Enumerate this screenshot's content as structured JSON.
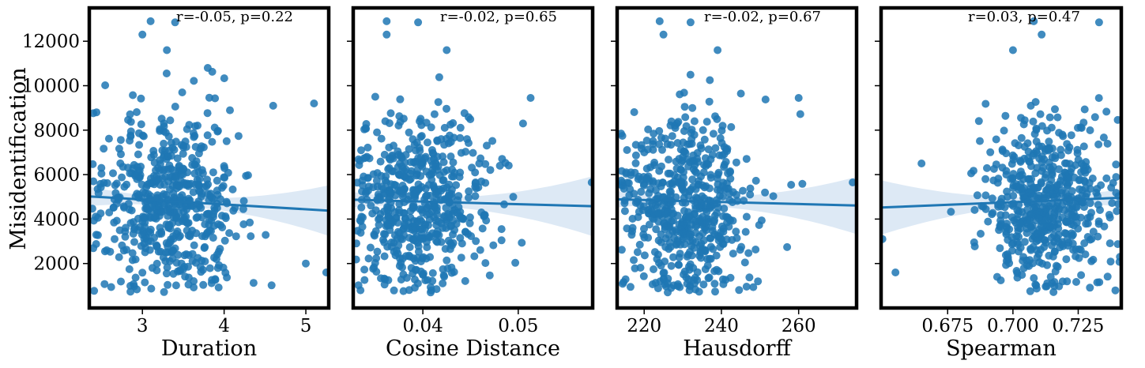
{
  "figure": {
    "ylabel": "Misidentification",
    "point_color": "#1f77b4",
    "band_color": "#c6dbef",
    "frame_color": "#000000"
  },
  "chart_data": [
    {
      "type": "scatter",
      "xlabel": "Duration",
      "ylabel": "Misidentification",
      "annotation": "r=-0.05, p=0.22",
      "xlim": [
        2.35,
        5.28
      ],
      "ylim": [
        0,
        13500
      ],
      "xticks": [
        3,
        4,
        5
      ],
      "xtick_labels": [
        "3",
        "4",
        "5"
      ],
      "yticks": [
        2000,
        4000,
        6000,
        8000,
        10000,
        12000
      ],
      "ytick_labels": [
        "2000",
        "4000",
        "6000",
        "8000",
        "10000",
        "12000"
      ],
      "x_center": 3.35,
      "x_spread": 0.42,
      "x_min": 2.38,
      "x_max": 5.26,
      "regression": {
        "x": [
          2.35,
          5.28
        ],
        "y": [
          5020,
          4380
        ]
      },
      "outliers": [
        [
          3.1,
          12900
        ],
        [
          3.0,
          12300
        ],
        [
          3.4,
          12850
        ],
        [
          3.3,
          11600
        ],
        [
          3.8,
          10800
        ],
        [
          4.6,
          9100
        ],
        [
          5.1,
          9200
        ],
        [
          5.25,
          1600
        ],
        [
          2.4,
          5700
        ],
        [
          5.0,
          2000
        ]
      ]
    },
    {
      "type": "scatter",
      "xlabel": "Cosine Distance",
      "annotation": "r=-0.02, p=0.65",
      "xlim": [
        0.0327,
        0.0578
      ],
      "ylim": [
        0,
        13500
      ],
      "xticks": [
        0.04,
        0.05
      ],
      "xtick_labels": [
        "0.04",
        "0.05"
      ],
      "yticks": [
        2000,
        4000,
        6000,
        8000,
        10000,
        12000
      ],
      "ytick_labels": [
        "",
        "",
        "",
        "",
        "",
        ""
      ],
      "x_center": 0.0395,
      "x_spread": 0.0037,
      "x_min": 0.033,
      "x_max": 0.0575,
      "regression": {
        "x": [
          0.0327,
          0.0578
        ],
        "y": [
          4870,
          4580
        ]
      },
      "outliers": [
        [
          0.0362,
          12900
        ],
        [
          0.0362,
          12300
        ],
        [
          0.0395,
          12850
        ],
        [
          0.0425,
          11600
        ],
        [
          0.0513,
          9450
        ],
        [
          0.0577,
          5650
        ],
        [
          0.0505,
          8300
        ]
      ]
    },
    {
      "type": "scatter",
      "xlabel": "Hausdorff",
      "annotation": "r=-0.02, p=0.67",
      "xlim": [
        213,
        275
      ],
      "ylim": [
        0,
        13500
      ],
      "xticks": [
        220,
        240,
        260
      ],
      "xtick_labels": [
        "220",
        "240",
        "260"
      ],
      "yticks": [
        2000,
        4000,
        6000,
        8000,
        10000,
        12000
      ],
      "ytick_labels": [
        "",
        "",
        "",
        "",
        "",
        ""
      ],
      "x_center": 231,
      "x_spread": 8.5,
      "x_min": 214,
      "x_max": 274,
      "regression": {
        "x": [
          213,
          275
        ],
        "y": [
          4890,
          4610
        ]
      },
      "outliers": [
        [
          224,
          12900
        ],
        [
          225,
          12300
        ],
        [
          232,
          12850
        ],
        [
          239,
          11600
        ],
        [
          260,
          9450
        ],
        [
          274,
          5650
        ],
        [
          237,
          10250
        ]
      ]
    },
    {
      "type": "scatter",
      "xlabel": "Spearman",
      "annotation": "r=0.03, p=0.47",
      "xlim": [
        0.6495,
        0.7415
      ],
      "ylim": [
        0,
        13500
      ],
      "xticks": [
        0.675,
        0.7,
        0.725
      ],
      "xtick_labels": [
        "0.675",
        "0.700",
        "0.725"
      ],
      "yticks": [
        2000,
        4000,
        6000,
        8000,
        10000,
        12000
      ],
      "ytick_labels": [
        "",
        "",
        "",
        "",
        "",
        ""
      ],
      "x_center": 0.713,
      "x_spread": 0.0125,
      "x_min": 0.65,
      "x_max": 0.741,
      "regression": {
        "x": [
          0.6495,
          0.7415
        ],
        "y": [
          4520,
          4960
        ]
      },
      "outliers": [
        [
          0.708,
          12900
        ],
        [
          0.711,
          12300
        ],
        [
          0.733,
          12850
        ],
        [
          0.7,
          11600
        ],
        [
          0.65,
          3100
        ],
        [
          0.655,
          1600
        ],
        [
          0.741,
          2300
        ],
        [
          0.665,
          6500
        ]
      ]
    }
  ]
}
